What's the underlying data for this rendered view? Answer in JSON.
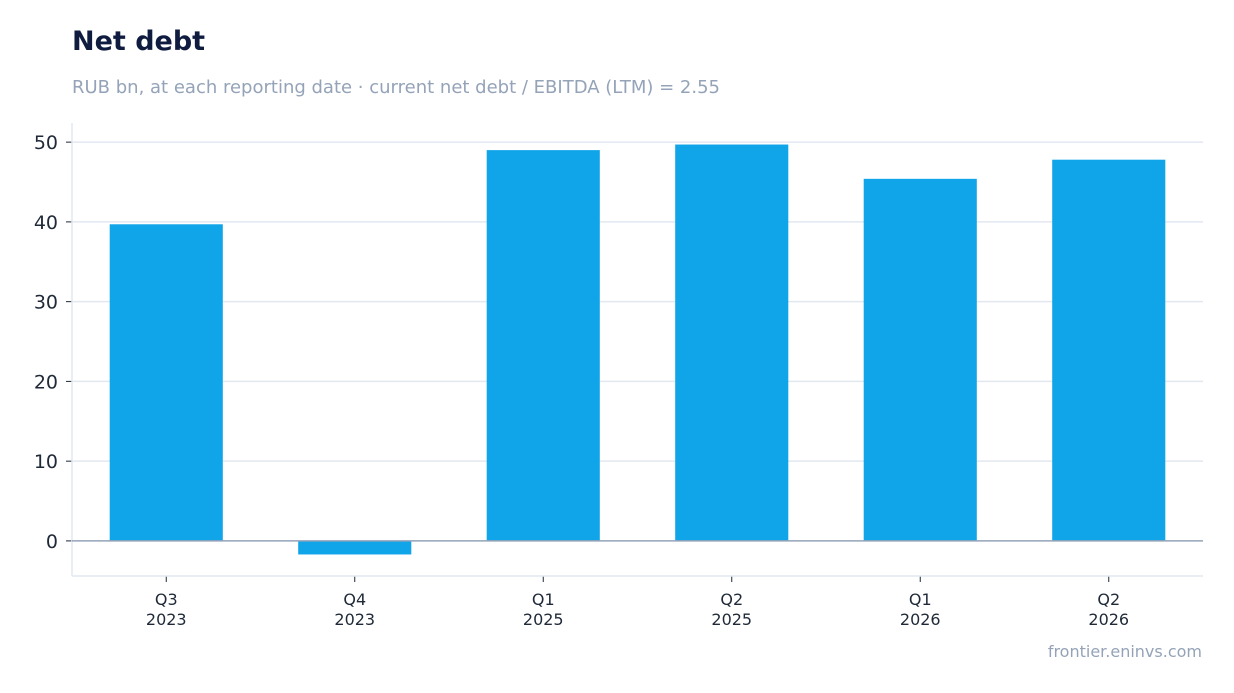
{
  "title": "Net debt",
  "subtitle": "RUB bn, at each reporting date · current net debt / EBITDA (LTM) = 2.55",
  "footer": "frontier.eninvs.com",
  "colors": {
    "bar": "#10a5e8",
    "grid": "#e2e8f0",
    "zero_line": "#94a3b8",
    "axis": "#e2e8f0"
  },
  "chart_data": {
    "type": "bar",
    "title": "Net debt",
    "subtitle": "RUB bn, at each reporting date · current net debt / EBITDA (LTM) = 2.55",
    "xlabel": "",
    "ylabel": "",
    "categories": [
      [
        "Q3",
        "2023"
      ],
      [
        "Q4",
        "2023"
      ],
      [
        "Q1",
        "2025"
      ],
      [
        "Q2",
        "2025"
      ],
      [
        "Q1",
        "2026"
      ],
      [
        "Q2",
        "2026"
      ]
    ],
    "values": [
      39.7,
      -1.7,
      49.0,
      49.7,
      45.4,
      47.8
    ],
    "ylim": [
      -4.4,
      52.4
    ],
    "yticks": [
      0,
      10,
      20,
      30,
      40,
      50
    ],
    "grid": true,
    "legend": "none"
  }
}
